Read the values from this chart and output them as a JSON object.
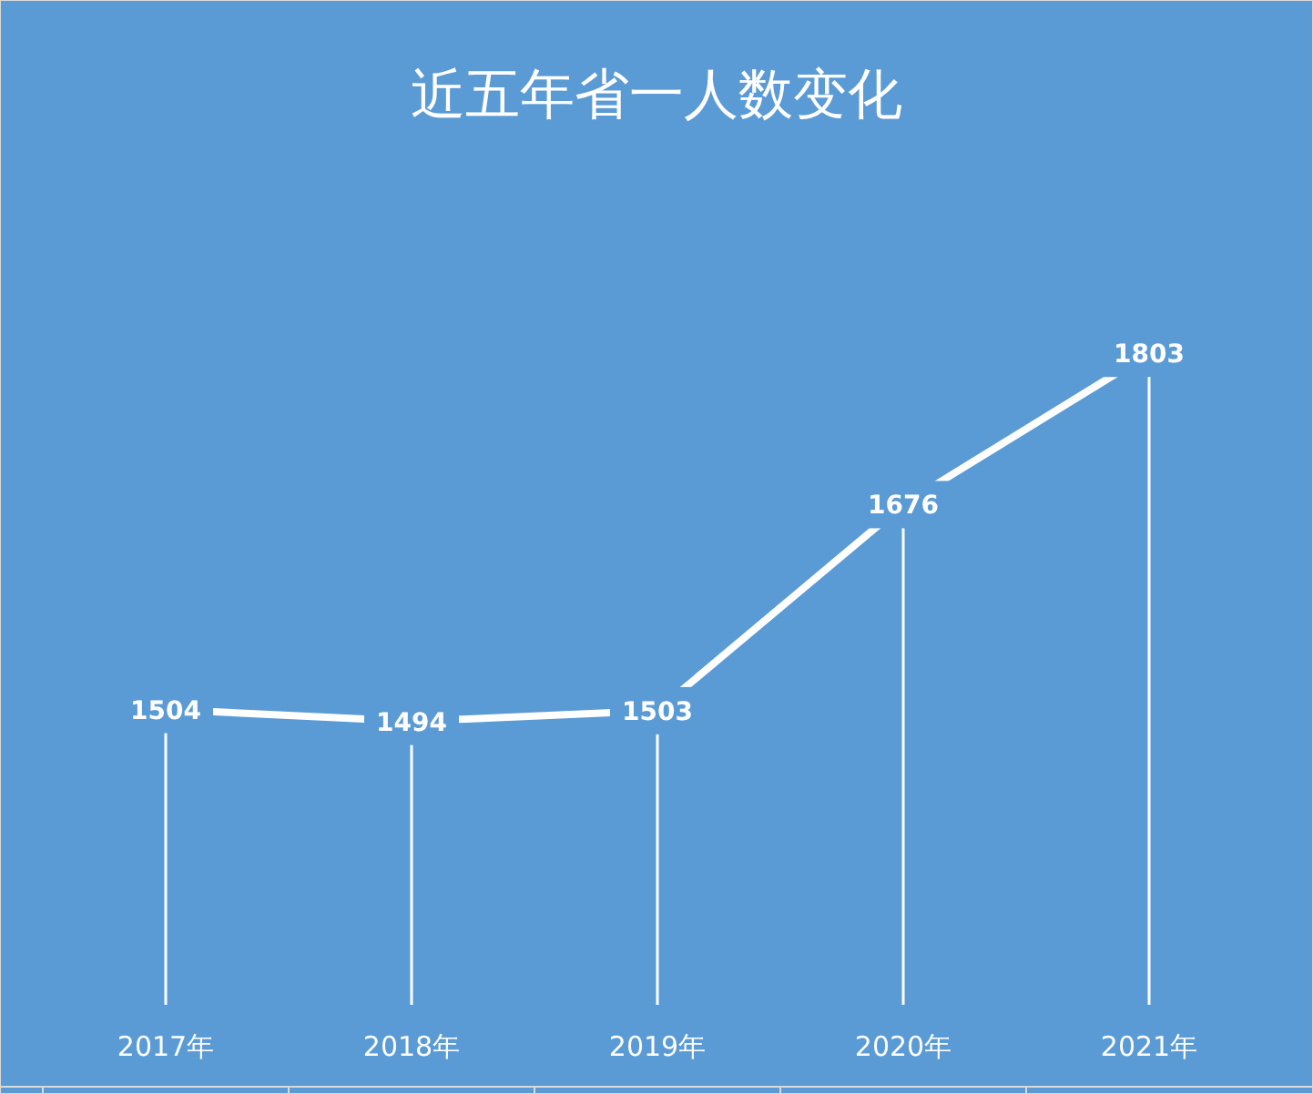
{
  "chart_data": {
    "type": "line",
    "title": "近五年省一人数变化",
    "categories": [
      "2017年",
      "2018年",
      "2019年",
      "2020年",
      "2021年"
    ],
    "series": [
      {
        "color": "#ffffff",
        "values": [
          1504,
          1494,
          1503,
          1676,
          1803
        ]
      }
    ],
    "data_labels": true,
    "line_style": "solid"
  }
}
